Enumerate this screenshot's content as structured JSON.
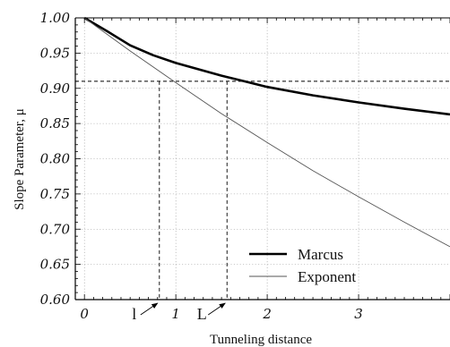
{
  "chart_data": {
    "type": "line",
    "xlabel": "Tunneling distance",
    "ylabel": "Slope Parameter, μ",
    "xlim": [
      -0.1,
      4.0
    ],
    "ylim": [
      0.6,
      1.0
    ],
    "x_ticks": [
      0,
      1,
      2,
      3
    ],
    "x_tick_labels": [
      "0",
      "1",
      "2",
      "3"
    ],
    "y_ticks": [
      0.6,
      0.65,
      0.7,
      0.75,
      0.8,
      0.85,
      0.9,
      0.95,
      1.0
    ],
    "y_tick_labels": [
      "0.60",
      "0.65",
      "0.70",
      "0.75",
      "0.80",
      "0.85",
      "0.90",
      "0.95",
      "1.00"
    ],
    "grid": true,
    "legend_position": "bottom-right",
    "series": [
      {
        "name": "Marcus",
        "style": "thick",
        "x": [
          0,
          0.25,
          0.5,
          0.75,
          1.0,
          1.25,
          1.5,
          1.75,
          2.0,
          2.5,
          3.0,
          3.5,
          4.0
        ],
        "y": [
          1.0,
          0.981,
          0.961,
          0.947,
          0.936,
          0.927,
          0.918,
          0.91,
          0.902,
          0.89,
          0.88,
          0.871,
          0.863
        ]
      },
      {
        "name": "Exponent",
        "style": "thin",
        "x": [
          0,
          0.5,
          1.0,
          1.5,
          2.0,
          2.5,
          3.0,
          3.5,
          4.0
        ],
        "y": [
          1.0,
          0.953,
          0.908,
          0.864,
          0.823,
          0.783,
          0.746,
          0.71,
          0.675
        ]
      }
    ],
    "reference_line": {
      "y": 0.91
    },
    "markers": [
      {
        "label": "l",
        "x": 0.82
      },
      {
        "label": "L",
        "x": 1.56
      }
    ]
  }
}
